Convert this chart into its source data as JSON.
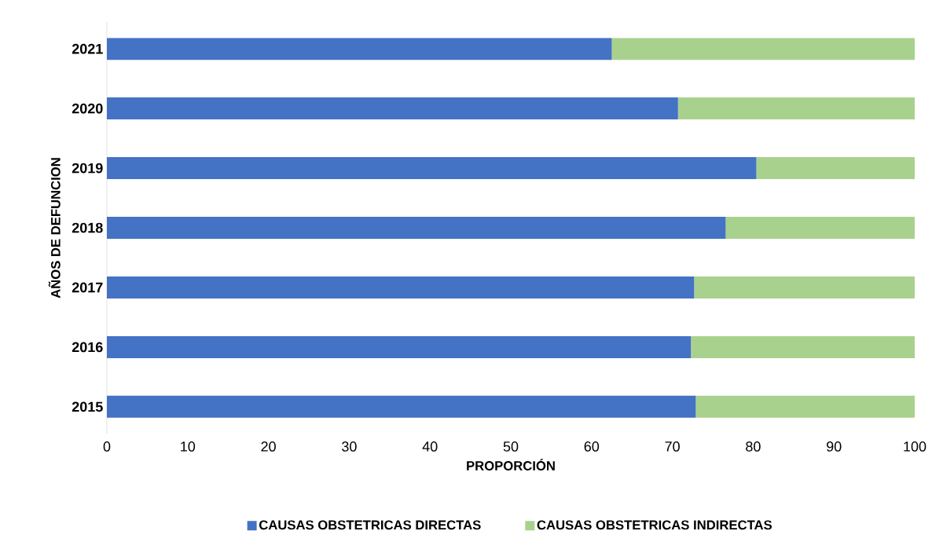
{
  "chart_data": {
    "type": "bar",
    "orientation": "horizontal",
    "stacked": true,
    "xlabel": "PROPORCIÓN",
    "ylabel": "AÑOS DE DEFUNCION",
    "categories": [
      "2021",
      "2020",
      "2019",
      "2018",
      "2017",
      "2016",
      "2015"
    ],
    "series": [
      {
        "name": "CAUSAS OBSTETRICAS DIRECTAS",
        "color": "#4472c4",
        "values": [
          62.5,
          70.7,
          80.4,
          76.6,
          72.7,
          72.3,
          72.9
        ]
      },
      {
        "name": "CAUSAS OBSTETRICAS INDIRECTAS",
        "color": "#a9d18e",
        "values": [
          37.5,
          29.3,
          19.6,
          23.4,
          27.3,
          27.7,
          27.1
        ]
      }
    ],
    "xlim": [
      0,
      100
    ],
    "xticks": [
      0,
      10,
      20,
      30,
      40,
      50,
      60,
      70,
      80,
      90,
      100
    ],
    "grid": false,
    "legend": "bottom"
  }
}
